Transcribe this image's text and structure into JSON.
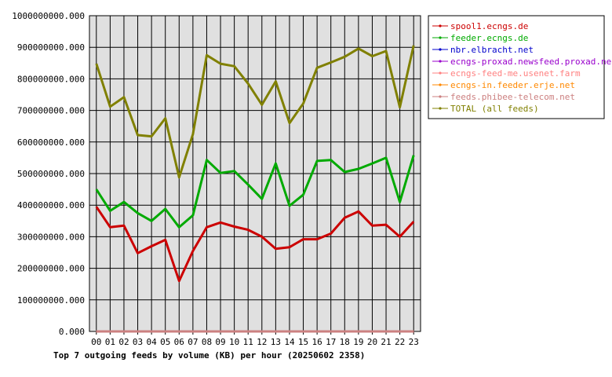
{
  "chart_data": {
    "type": "line",
    "title": "Top 7 outgoing feeds by volume (KB) per hour (20250602 2358)",
    "categories": [
      "00",
      "01",
      "02",
      "03",
      "04",
      "05",
      "06",
      "07",
      "08",
      "09",
      "10",
      "11",
      "12",
      "13",
      "14",
      "15",
      "16",
      "17",
      "18",
      "19",
      "20",
      "21",
      "22",
      "23"
    ],
    "y_ticks": [
      "0.000",
      "100000000.000",
      "200000000.000",
      "300000000.000",
      "400000000.000",
      "500000000.000",
      "600000000.000",
      "700000000.000",
      "800000000.000",
      "900000000.000",
      "1000000000.000"
    ],
    "ylim": [
      0,
      1000000000
    ],
    "grid": true,
    "legend_position": "top-right",
    "series": [
      {
        "name": "spool1.ecngs.de",
        "color": "#cc0000",
        "values": [
          395000000,
          330000000,
          335000000,
          248000000,
          270000000,
          290000000,
          160000000,
          255000000,
          330000000,
          345000000,
          332000000,
          322000000,
          300000000,
          262000000,
          267000000,
          292000000,
          292000000,
          310000000,
          360000000,
          380000000,
          335000000,
          338000000,
          300000000,
          348000000
        ]
      },
      {
        "name": "feeder.ecngs.de",
        "color": "#00aa00",
        "values": [
          450000000,
          382000000,
          410000000,
          375000000,
          350000000,
          388000000,
          330000000,
          368000000,
          543000000,
          502000000,
          508000000,
          465000000,
          420000000,
          532000000,
          398000000,
          433000000,
          540000000,
          543000000,
          505000000,
          515000000,
          532000000,
          550000000,
          410000000,
          558000000
        ]
      },
      {
        "name": "nbr.elbracht.net",
        "color": "#0000cc",
        "values": [
          0,
          0,
          0,
          0,
          0,
          0,
          0,
          0,
          0,
          0,
          0,
          0,
          0,
          0,
          0,
          0,
          0,
          0,
          0,
          0,
          0,
          0,
          0,
          0
        ]
      },
      {
        "name": "ecngs-proxad.newsfeed.proxad.net",
        "color": "#9900cc",
        "values": [
          0,
          0,
          0,
          0,
          0,
          0,
          0,
          0,
          0,
          0,
          0,
          0,
          0,
          0,
          0,
          0,
          0,
          0,
          0,
          0,
          0,
          0,
          0,
          0
        ]
      },
      {
        "name": "ecngs-feed-me.usenet.farm",
        "color": "#ff8080",
        "values": [
          0,
          0,
          0,
          0,
          0,
          0,
          0,
          0,
          0,
          0,
          0,
          0,
          0,
          0,
          0,
          0,
          0,
          0,
          0,
          0,
          0,
          0,
          0,
          0
        ]
      },
      {
        "name": "ecngs-in.feeder.erje.net",
        "color": "#ff8800",
        "values": [
          0,
          0,
          0,
          0,
          0,
          0,
          0,
          0,
          0,
          0,
          0,
          0,
          0,
          0,
          0,
          0,
          0,
          0,
          0,
          0,
          0,
          0,
          0,
          0
        ]
      },
      {
        "name": "feeds.phibee-telecom.net",
        "color": "#cc8080",
        "values": [
          0,
          0,
          0,
          0,
          0,
          0,
          0,
          0,
          0,
          0,
          0,
          0,
          0,
          0,
          0,
          0,
          0,
          0,
          0,
          0,
          0,
          0,
          0,
          0
        ]
      },
      {
        "name": "TOTAL (all feeds)",
        "color": "#808000",
        "values": [
          848000000,
          712000000,
          742000000,
          622000000,
          618000000,
          675000000,
          488000000,
          625000000,
          875000000,
          848000000,
          840000000,
          785000000,
          718000000,
          792000000,
          660000000,
          722000000,
          835000000,
          852000000,
          870000000,
          896000000,
          872000000,
          888000000,
          710000000,
          906000000
        ]
      }
    ]
  }
}
